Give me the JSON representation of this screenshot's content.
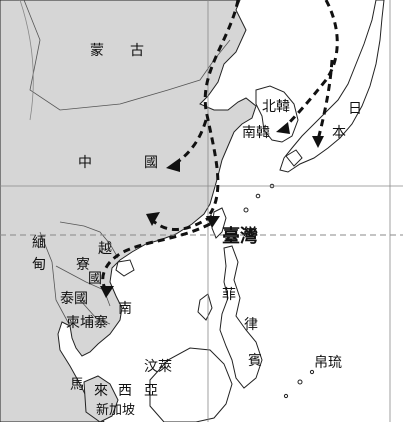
{
  "labels": {
    "mongolia_1": "蒙",
    "mongolia_2": "古",
    "china_1": "中",
    "china_2": "國",
    "north_korea": "北韓",
    "south_korea": "南韓",
    "japan_1": "日",
    "japan_2": "本",
    "taiwan": "臺灣",
    "myanmar_1": "緬",
    "myanmar_2": "甸",
    "laos_1": "寮",
    "laos_2": "國",
    "vietnam_1": "越",
    "vietnam_2": "南",
    "thailand": "泰國",
    "cambodia": "柬埔寨",
    "philippines_1": "菲",
    "philippines_2": "律",
    "philippines_3": "賓",
    "brunei": "汶萊",
    "malaysia_1": "馬",
    "malaysia_2": "來",
    "malaysia_3": "西",
    "malaysia_4": "亞",
    "singapore": "新加坡",
    "ryukyu": "帛琉"
  },
  "colors": {
    "land": "#d6d6d6",
    "sea": "#ffffff",
    "coast": "#222222",
    "grid": "#888888",
    "arrow": "#111111"
  },
  "map_features": [
    "land-mass",
    "graticule-lines",
    "dashed-border",
    "migration-route-arrows"
  ]
}
